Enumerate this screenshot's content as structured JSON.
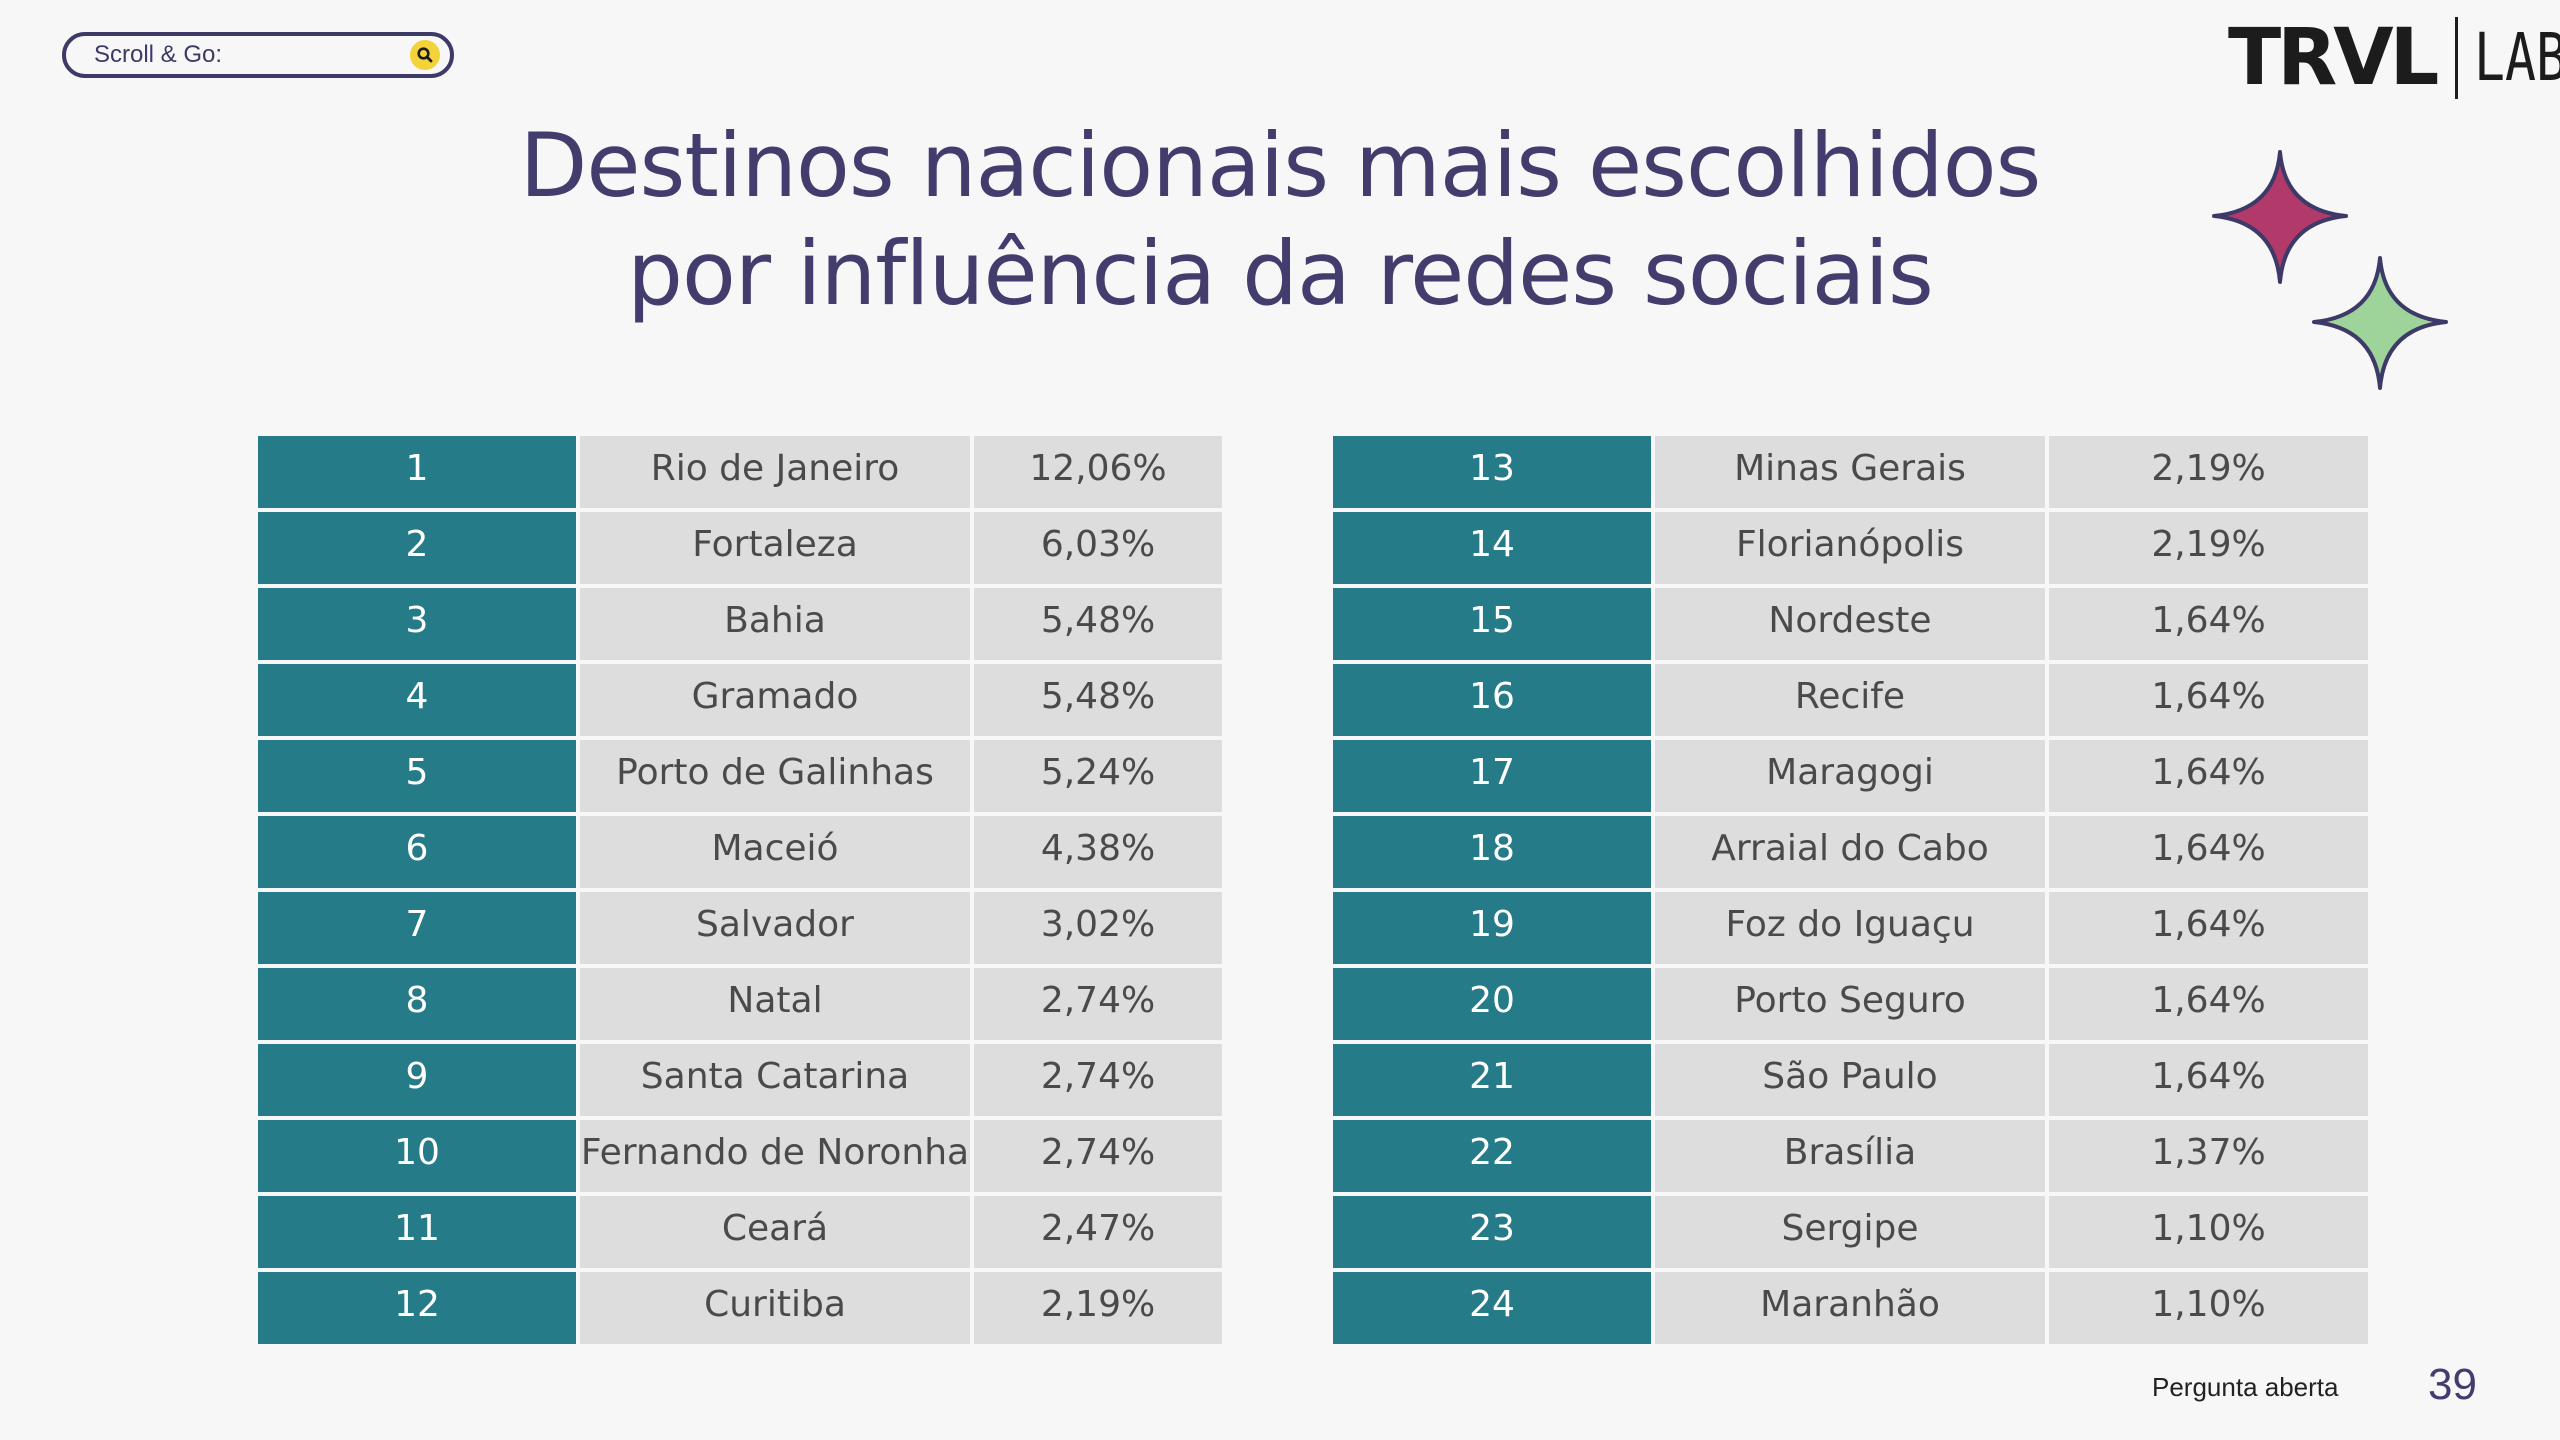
{
  "search": {
    "label": "Scroll & Go:"
  },
  "logo": {
    "left": "TRVL",
    "right": "LAB"
  },
  "title": {
    "line1": "Destinos nacionais mais escolhidos",
    "line2": "por influência da redes sociais"
  },
  "table_left": [
    {
      "rank": "1",
      "destination": "Rio de Janeiro",
      "percent": "12,06%"
    },
    {
      "rank": "2",
      "destination": "Fortaleza",
      "percent": "6,03%"
    },
    {
      "rank": "3",
      "destination": "Bahia",
      "percent": "5,48%"
    },
    {
      "rank": "4",
      "destination": "Gramado",
      "percent": "5,48%"
    },
    {
      "rank": "5",
      "destination": "Porto de Galinhas",
      "percent": "5,24%"
    },
    {
      "rank": "6",
      "destination": "Maceió",
      "percent": "4,38%"
    },
    {
      "rank": "7",
      "destination": "Salvador",
      "percent": "3,02%"
    },
    {
      "rank": "8",
      "destination": "Natal",
      "percent": "2,74%"
    },
    {
      "rank": "9",
      "destination": "Santa Catarina",
      "percent": "2,74%"
    },
    {
      "rank": "10",
      "destination": "Fernando de Noronha",
      "percent": "2,74%"
    },
    {
      "rank": "11",
      "destination": "Ceará",
      "percent": "2,47%"
    },
    {
      "rank": "12",
      "destination": "Curitiba",
      "percent": "2,19%"
    }
  ],
  "table_right": [
    {
      "rank": "13",
      "destination": "Minas Gerais",
      "percent": "2,19%"
    },
    {
      "rank": "14",
      "destination": "Florianópolis",
      "percent": "2,19%"
    },
    {
      "rank": "15",
      "destination": "Nordeste",
      "percent": "1,64%"
    },
    {
      "rank": "16",
      "destination": "Recife",
      "percent": "1,64%"
    },
    {
      "rank": "17",
      "destination": "Maragogi",
      "percent": "1,64%"
    },
    {
      "rank": "18",
      "destination": "Arraial do Cabo",
      "percent": "1,64%"
    },
    {
      "rank": "19",
      "destination": "Foz do Iguaçu",
      "percent": "1,64%"
    },
    {
      "rank": "20",
      "destination": "Porto Seguro",
      "percent": "1,64%"
    },
    {
      "rank": "21",
      "destination": "São Paulo",
      "percent": "1,64%"
    },
    {
      "rank": "22",
      "destination": "Brasília",
      "percent": "1,37%"
    },
    {
      "rank": "23",
      "destination": "Sergipe",
      "percent": "1,10%"
    },
    {
      "rank": "24",
      "destination": "Maranhão",
      "percent": "1,10%"
    }
  ],
  "footer": {
    "note": "Pergunta aberta",
    "page_number": "39"
  },
  "colors": {
    "rank_cell": "#267b88",
    "data_cell": "#dddddd",
    "title_text": "#433d6d",
    "star_pink": "#b23a6b",
    "star_green": "#9ed49a",
    "star_outline": "#3e3a68",
    "search_icon_bg": "#f4d23a"
  },
  "icons": {
    "search": "search-icon",
    "decorations": [
      "sparkle-star-icon",
      "sparkle-star-icon"
    ]
  }
}
